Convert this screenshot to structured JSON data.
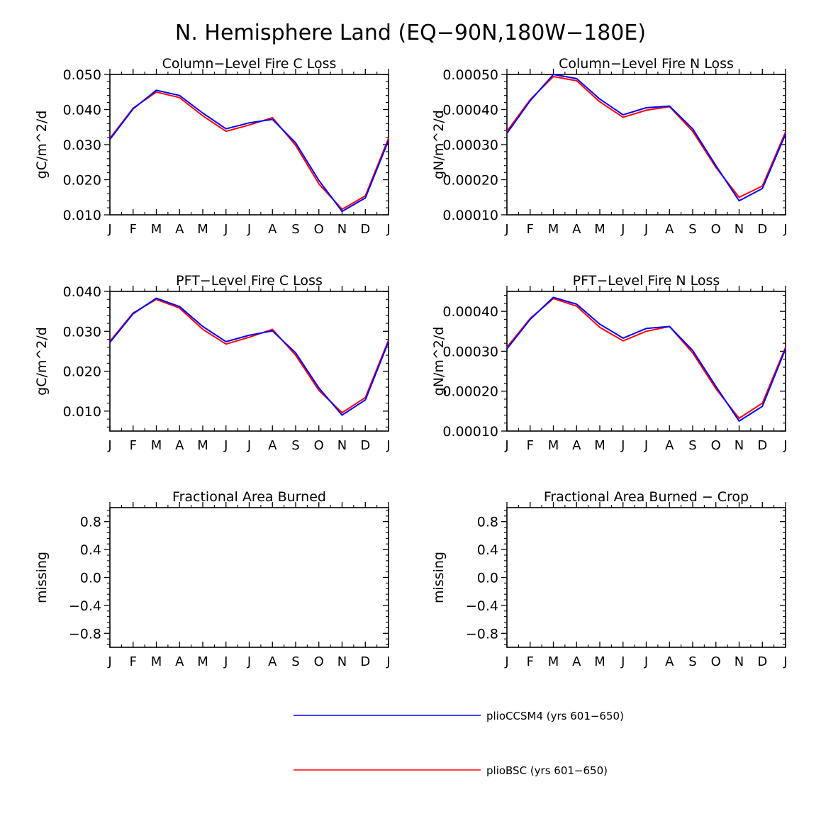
{
  "figure_title": "N. Hemisphere Land (EQ−90N,180W−180E)",
  "colors": {
    "series1": "#0000ff",
    "series2": "#ff0000",
    "axis": "#000000"
  },
  "legend": [
    {
      "label": "plioCCSM4 (yrs 601−650)",
      "color": "#0000ff"
    },
    {
      "label": "plioBSC (yrs 601−650)",
      "color": "#ff0000"
    }
  ],
  "chart_data": [
    {
      "type": "line",
      "title": "Column−Level Fire C Loss",
      "ylabel": "gC/m^2/d",
      "x": [
        "J",
        "F",
        "M",
        "A",
        "M",
        "J",
        "J",
        "A",
        "S",
        "O",
        "N",
        "D",
        "J"
      ],
      "ylim": [
        0.01,
        0.05
      ],
      "yticks": [
        "0.010",
        "0.020",
        "0.030",
        "0.040",
        "0.050"
      ],
      "series": [
        {
          "name": "plioCCSM4 (yrs 601−650)",
          "color": "#0000ff",
          "values": [
            0.0315,
            0.0402,
            0.0455,
            0.044,
            0.039,
            0.0345,
            0.0362,
            0.0372,
            0.0305,
            0.0198,
            0.011,
            0.0148,
            0.0312
          ]
        },
        {
          "name": "plioBSC (yrs 601−650)",
          "color": "#ff0000",
          "values": [
            0.0318,
            0.0404,
            0.045,
            0.0434,
            0.0382,
            0.0338,
            0.0356,
            0.0377,
            0.0298,
            0.0188,
            0.0116,
            0.0154,
            0.0318
          ]
        }
      ]
    },
    {
      "type": "line",
      "title": "Column−Level Fire N Loss",
      "ylabel": "gN/m^2/d",
      "x": [
        "J",
        "F",
        "M",
        "A",
        "M",
        "J",
        "J",
        "A",
        "S",
        "O",
        "N",
        "D",
        "J"
      ],
      "ylim": [
        0.0001,
        0.0005
      ],
      "yticks": [
        "0.00010",
        "0.00020",
        "0.00030",
        "0.00040",
        "0.00050"
      ],
      "series": [
        {
          "name": "plioCCSM4 (yrs 601−650)",
          "color": "#0000ff",
          "values": [
            0.000332,
            0.000425,
            0.0005,
            0.000488,
            0.00043,
            0.000385,
            0.000405,
            0.00041,
            0.000345,
            0.00024,
            0.00014,
            0.000175,
            0.00033
          ]
        },
        {
          "name": "plioBSC (yrs 601−650)",
          "color": "#ff0000",
          "values": [
            0.000338,
            0.000428,
            0.000494,
            0.000482,
            0.000422,
            0.000378,
            0.000398,
            0.000408,
            0.000338,
            0.000235,
            0.00015,
            0.000182,
            0.000336
          ]
        }
      ]
    },
    {
      "type": "line",
      "title": "PFT−Level Fire C Loss",
      "ylabel": "gC/m^2/d",
      "x": [
        "J",
        "F",
        "M",
        "A",
        "M",
        "J",
        "J",
        "A",
        "S",
        "O",
        "N",
        "D",
        "J"
      ],
      "ylim": [
        0.005,
        0.04
      ],
      "yticks": [
        "0.010",
        "0.020",
        "0.030",
        "0.040"
      ],
      "series": [
        {
          "name": "plioCCSM4 (yrs 601−650)",
          "color": "#0000ff",
          "values": [
            0.0272,
            0.0344,
            0.0383,
            0.0362,
            0.0312,
            0.0274,
            0.029,
            0.0301,
            0.0246,
            0.0158,
            0.009,
            0.0128,
            0.0274
          ]
        },
        {
          "name": "plioBSC (yrs 601−650)",
          "color": "#ff0000",
          "values": [
            0.0275,
            0.0346,
            0.038,
            0.0358,
            0.0305,
            0.0268,
            0.0285,
            0.0305,
            0.024,
            0.0152,
            0.0096,
            0.0134,
            0.0278
          ]
        }
      ]
    },
    {
      "type": "line",
      "title": "PFT−Level Fire N Loss",
      "ylabel": "gN/m^2/d",
      "x": [
        "J",
        "F",
        "M",
        "A",
        "M",
        "J",
        "J",
        "A",
        "S",
        "O",
        "N",
        "D",
        "J"
      ],
      "ylim": [
        0.0001,
        0.00045
      ],
      "yticks": [
        "0.00010",
        "0.00020",
        "0.00030",
        "0.00040"
      ],
      "series": [
        {
          "name": "plioCCSM4 (yrs 601−650)",
          "color": "#0000ff",
          "values": [
            0.000306,
            0.00038,
            0.000435,
            0.000418,
            0.000368,
            0.000333,
            0.000357,
            0.000362,
            0.000302,
            0.000212,
            0.000125,
            0.000162,
            0.000306
          ]
        },
        {
          "name": "plioBSC (yrs 601−650)",
          "color": "#ff0000",
          "values": [
            0.00031,
            0.000382,
            0.000432,
            0.000413,
            0.00036,
            0.000326,
            0.00035,
            0.000362,
            0.000296,
            0.000206,
            0.000132,
            0.00017,
            0.00031
          ]
        }
      ]
    },
    {
      "type": "line",
      "title": "Fractional Area Burned",
      "ylabel": "missing",
      "x": [
        "J",
        "F",
        "M",
        "A",
        "M",
        "J",
        "J",
        "A",
        "S",
        "O",
        "N",
        "D",
        "J"
      ],
      "ylim": [
        -1.0,
        1.0
      ],
      "yticks": [
        "−0.8",
        "−0.4",
        "0.0",
        "0.4",
        "0.8"
      ],
      "series": []
    },
    {
      "type": "line",
      "title": "Fractional Area Burned − Crop",
      "ylabel": "missing",
      "x": [
        "J",
        "F",
        "M",
        "A",
        "M",
        "J",
        "J",
        "A",
        "S",
        "O",
        "N",
        "D",
        "J"
      ],
      "ylim": [
        -1.0,
        1.0
      ],
      "yticks": [
        "−0.8",
        "−0.4",
        "0.0",
        "0.4",
        "0.8"
      ],
      "series": []
    }
  ]
}
